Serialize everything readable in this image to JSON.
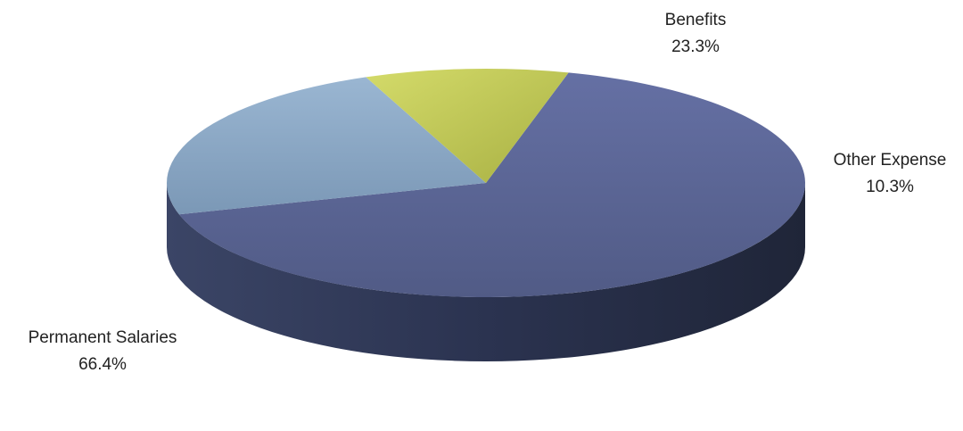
{
  "chart_data": {
    "type": "pie",
    "style": "3d",
    "title": "",
    "slices": [
      {
        "name": "Permanent Salaries",
        "value": 66.4,
        "display": "66.4%",
        "color": "#5b6697"
      },
      {
        "name": "Benefits",
        "value": 23.3,
        "display": "23.3%",
        "color": "#87a4c2"
      },
      {
        "name": "Other Expense",
        "value": 10.3,
        "display": "10.3%",
        "color": "#c2ca4f"
      }
    ],
    "legend": "none"
  }
}
